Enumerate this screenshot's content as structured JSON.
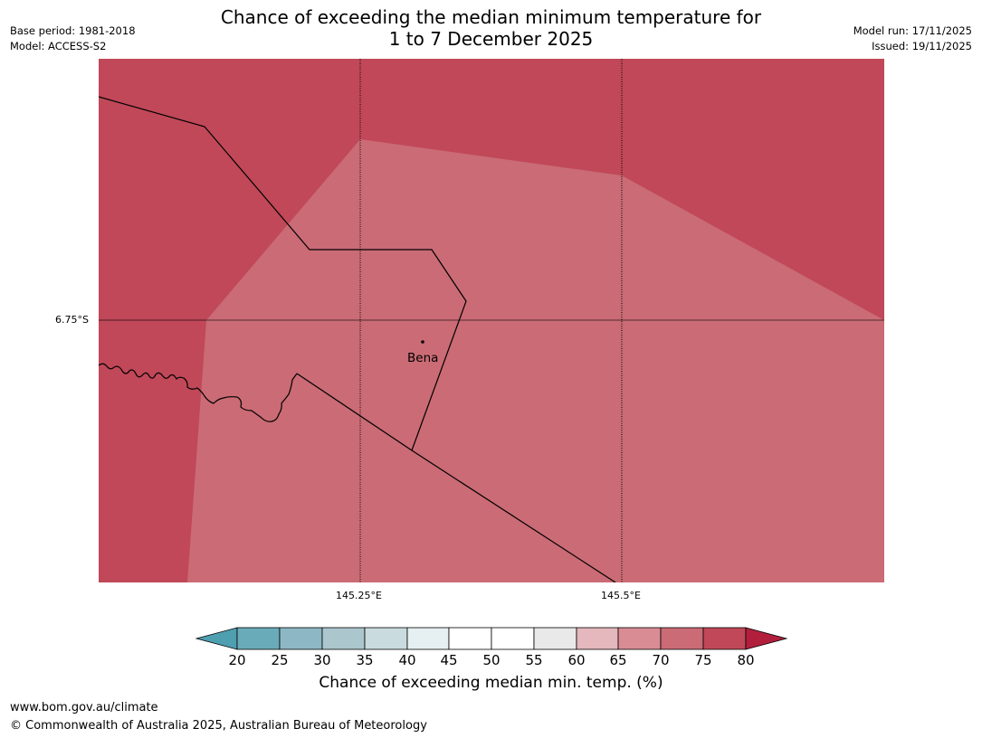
{
  "header": {
    "title_line1": "Chance of exceeding the median minimum temperature for",
    "title_line2": "1 to 7 December 2025",
    "base_period": "Base period: 1981-2018",
    "model": "Model: ACCESS-S2",
    "model_run": "Model run: 17/11/2025",
    "issued": "Issued: 19/11/2025"
  },
  "map": {
    "lat_label": "6.75°S",
    "lon_labels": [
      "145.25°E",
      "145.5°E"
    ],
    "place_name": "Bena",
    "colors": {
      "band_75_80": "#c04858",
      "band_70_75": "#ca6b75",
      "boundary": "#000000",
      "gridline": "#000000"
    }
  },
  "colorbar": {
    "ticks": [
      "20",
      "25",
      "30",
      "35",
      "40",
      "45",
      "50",
      "55",
      "60",
      "65",
      "70",
      "75",
      "80"
    ],
    "colors": [
      "#4e9fb0",
      "#6aabba",
      "#8db7c4",
      "#abc6cd",
      "#c9dbde",
      "#e6eff1",
      "#ffffff",
      "#ffffff",
      "#e9e9e9",
      "#e4b8bc",
      "#d98c94",
      "#ca6b75",
      "#c04858",
      "#b11f3c"
    ],
    "label": "Chance of exceeding median min. temp. (%)"
  },
  "footer": {
    "website": "www.bom.gov.au/climate",
    "copyright": "© Commonwealth of Australia 2025, Australian Bureau of Meteorology"
  }
}
